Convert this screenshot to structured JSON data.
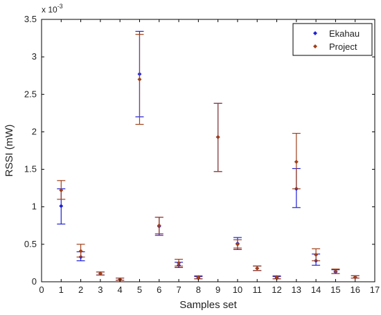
{
  "chart_data": {
    "type": "scatter",
    "title": "",
    "xlabel": "Samples set",
    "ylabel": "RSSI (mW)",
    "y_exponent_label_base": "x 10",
    "y_exponent_label_power": "-3",
    "xlim": [
      0,
      17
    ],
    "ylim": [
      0,
      3.5
    ],
    "x_ticks": [
      0,
      1,
      2,
      3,
      4,
      5,
      6,
      7,
      8,
      9,
      10,
      11,
      12,
      13,
      14,
      15,
      16,
      17
    ],
    "y_ticks": [
      0,
      0.5,
      1,
      1.5,
      2,
      2.5,
      3,
      3.5
    ],
    "y_tick_labels": [
      "0",
      "0.5",
      "1",
      "1.5",
      "2",
      "2.5",
      "3",
      "3.5"
    ],
    "legend_position": "top-right",
    "grid": false,
    "series": [
      {
        "name": "Ekahau",
        "color": "#1f1fd6",
        "marker": "diamond",
        "x": [
          1,
          2,
          3,
          4,
          5,
          6,
          7,
          8,
          9,
          10,
          11,
          12,
          13,
          14,
          15,
          16
        ],
        "values": [
          1.01,
          0.33,
          0.11,
          0.03,
          2.77,
          0.74,
          0.22,
          0.05,
          1.93,
          0.51,
          0.18,
          0.05,
          1.24,
          0.28,
          0.13,
          0.06
        ],
        "error_lower": [
          0.77,
          0.28,
          0.09,
          0.02,
          2.2,
          0.62,
          0.19,
          0.04,
          1.47,
          0.43,
          0.15,
          0.04,
          0.99,
          0.22,
          0.11,
          0.05
        ],
        "error_upper": [
          1.24,
          0.4,
          0.13,
          0.05,
          3.34,
          0.86,
          0.26,
          0.07,
          2.38,
          0.59,
          0.21,
          0.07,
          1.51,
          0.37,
          0.16,
          0.08
        ]
      },
      {
        "name": "Project",
        "color": "#a0401a",
        "marker": "diamond",
        "x": [
          1,
          2,
          3,
          4,
          5,
          6,
          7,
          8,
          9,
          10,
          11,
          12,
          13,
          14,
          15,
          16
        ],
        "values": [
          1.22,
          0.41,
          0.11,
          0.03,
          2.7,
          0.75,
          0.25,
          0.06,
          1.93,
          0.5,
          0.18,
          0.06,
          1.6,
          0.36,
          0.14,
          0.06
        ],
        "error_lower": [
          1.1,
          0.33,
          0.09,
          0.02,
          2.1,
          0.64,
          0.21,
          0.04,
          1.47,
          0.45,
          0.15,
          0.04,
          1.24,
          0.28,
          0.11,
          0.05
        ],
        "error_upper": [
          1.35,
          0.5,
          0.13,
          0.05,
          3.3,
          0.86,
          0.3,
          0.08,
          2.38,
          0.56,
          0.21,
          0.08,
          1.98,
          0.44,
          0.17,
          0.08
        ]
      }
    ]
  }
}
